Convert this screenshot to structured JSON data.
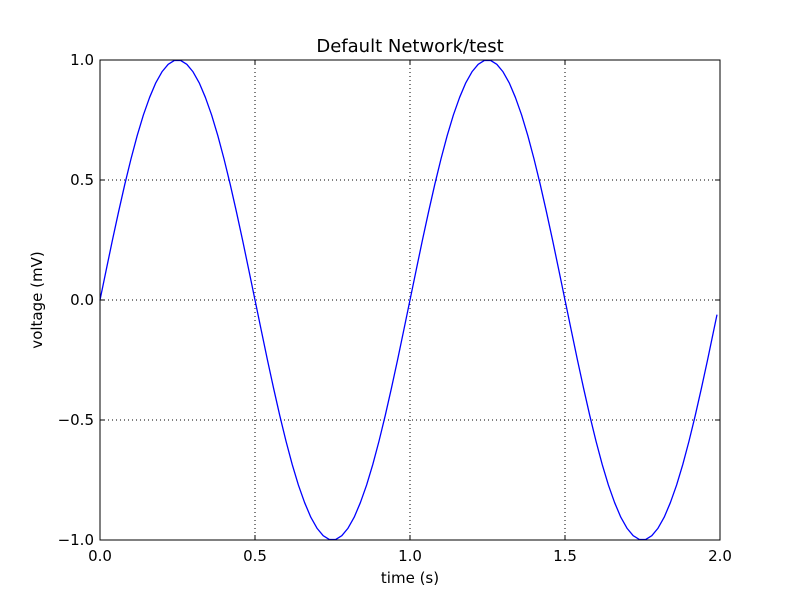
{
  "chart_data": {
    "type": "line",
    "title": "Default Network/test",
    "xlabel": "time (s)",
    "ylabel": "voltage (mV)",
    "xlim": [
      0.0,
      2.0
    ],
    "ylim": [
      -1.0,
      1.0
    ],
    "grid": true,
    "x_ticks": [
      0.0,
      0.5,
      1.0,
      1.5,
      2.0
    ],
    "x_tick_labels": [
      "0.0",
      "0.5",
      "1.0",
      "1.5",
      "2.0"
    ],
    "y_ticks": [
      -1.0,
      -0.5,
      0.0,
      0.5,
      1.0
    ],
    "y_tick_labels": [
      "−1.0",
      "−0.5",
      "0.0",
      "0.5",
      "1.0"
    ],
    "series": [
      {
        "color": "#0000ff",
        "x": [
          0.0,
          0.02,
          0.04,
          0.06,
          0.08,
          0.1,
          0.12,
          0.14,
          0.16,
          0.18,
          0.2,
          0.22,
          0.24,
          0.26,
          0.28,
          0.3,
          0.32,
          0.34,
          0.36,
          0.38,
          0.4,
          0.42,
          0.44,
          0.46,
          0.48,
          0.5,
          0.52,
          0.54,
          0.56,
          0.58,
          0.6,
          0.62,
          0.64,
          0.66,
          0.68,
          0.7,
          0.72,
          0.74,
          0.76,
          0.78,
          0.8,
          0.82,
          0.84,
          0.86,
          0.88,
          0.9,
          0.92,
          0.94,
          0.96,
          0.98,
          1.0,
          1.02,
          1.04,
          1.06,
          1.08,
          1.1,
          1.12,
          1.14,
          1.16,
          1.18,
          1.2,
          1.22,
          1.24,
          1.26,
          1.28,
          1.3,
          1.32,
          1.34,
          1.36,
          1.38,
          1.4,
          1.42,
          1.44,
          1.46,
          1.48,
          1.5,
          1.52,
          1.54,
          1.56,
          1.58,
          1.6,
          1.62,
          1.64,
          1.66,
          1.68,
          1.7,
          1.72,
          1.74,
          1.76,
          1.78,
          1.8,
          1.82,
          1.84,
          1.86,
          1.88,
          1.9,
          1.92,
          1.94,
          1.96,
          1.99
        ],
        "y": [
          0.0,
          0.125,
          0.249,
          0.368,
          0.482,
          0.588,
          0.685,
          0.771,
          0.844,
          0.905,
          0.951,
          0.982,
          0.998,
          0.998,
          0.982,
          0.951,
          0.905,
          0.844,
          0.771,
          0.685,
          0.588,
          0.482,
          0.368,
          0.249,
          0.125,
          0.0,
          -0.125,
          -0.249,
          -0.368,
          -0.482,
          -0.588,
          -0.685,
          -0.771,
          -0.844,
          -0.905,
          -0.951,
          -0.982,
          -0.998,
          -0.998,
          -0.982,
          -0.951,
          -0.905,
          -0.844,
          -0.771,
          -0.685,
          -0.588,
          -0.482,
          -0.368,
          -0.249,
          -0.125,
          0.0,
          0.125,
          0.249,
          0.368,
          0.482,
          0.588,
          0.685,
          0.771,
          0.844,
          0.905,
          0.951,
          0.982,
          0.998,
          0.998,
          0.982,
          0.951,
          0.905,
          0.844,
          0.771,
          0.685,
          0.588,
          0.482,
          0.368,
          0.249,
          0.125,
          0.0,
          -0.125,
          -0.249,
          -0.368,
          -0.482,
          -0.588,
          -0.685,
          -0.771,
          -0.844,
          -0.905,
          -0.951,
          -0.982,
          -0.998,
          -0.998,
          -0.982,
          -0.951,
          -0.905,
          -0.844,
          -0.771,
          -0.685,
          -0.588,
          -0.482,
          -0.368,
          -0.249,
          -0.063
        ]
      }
    ]
  }
}
